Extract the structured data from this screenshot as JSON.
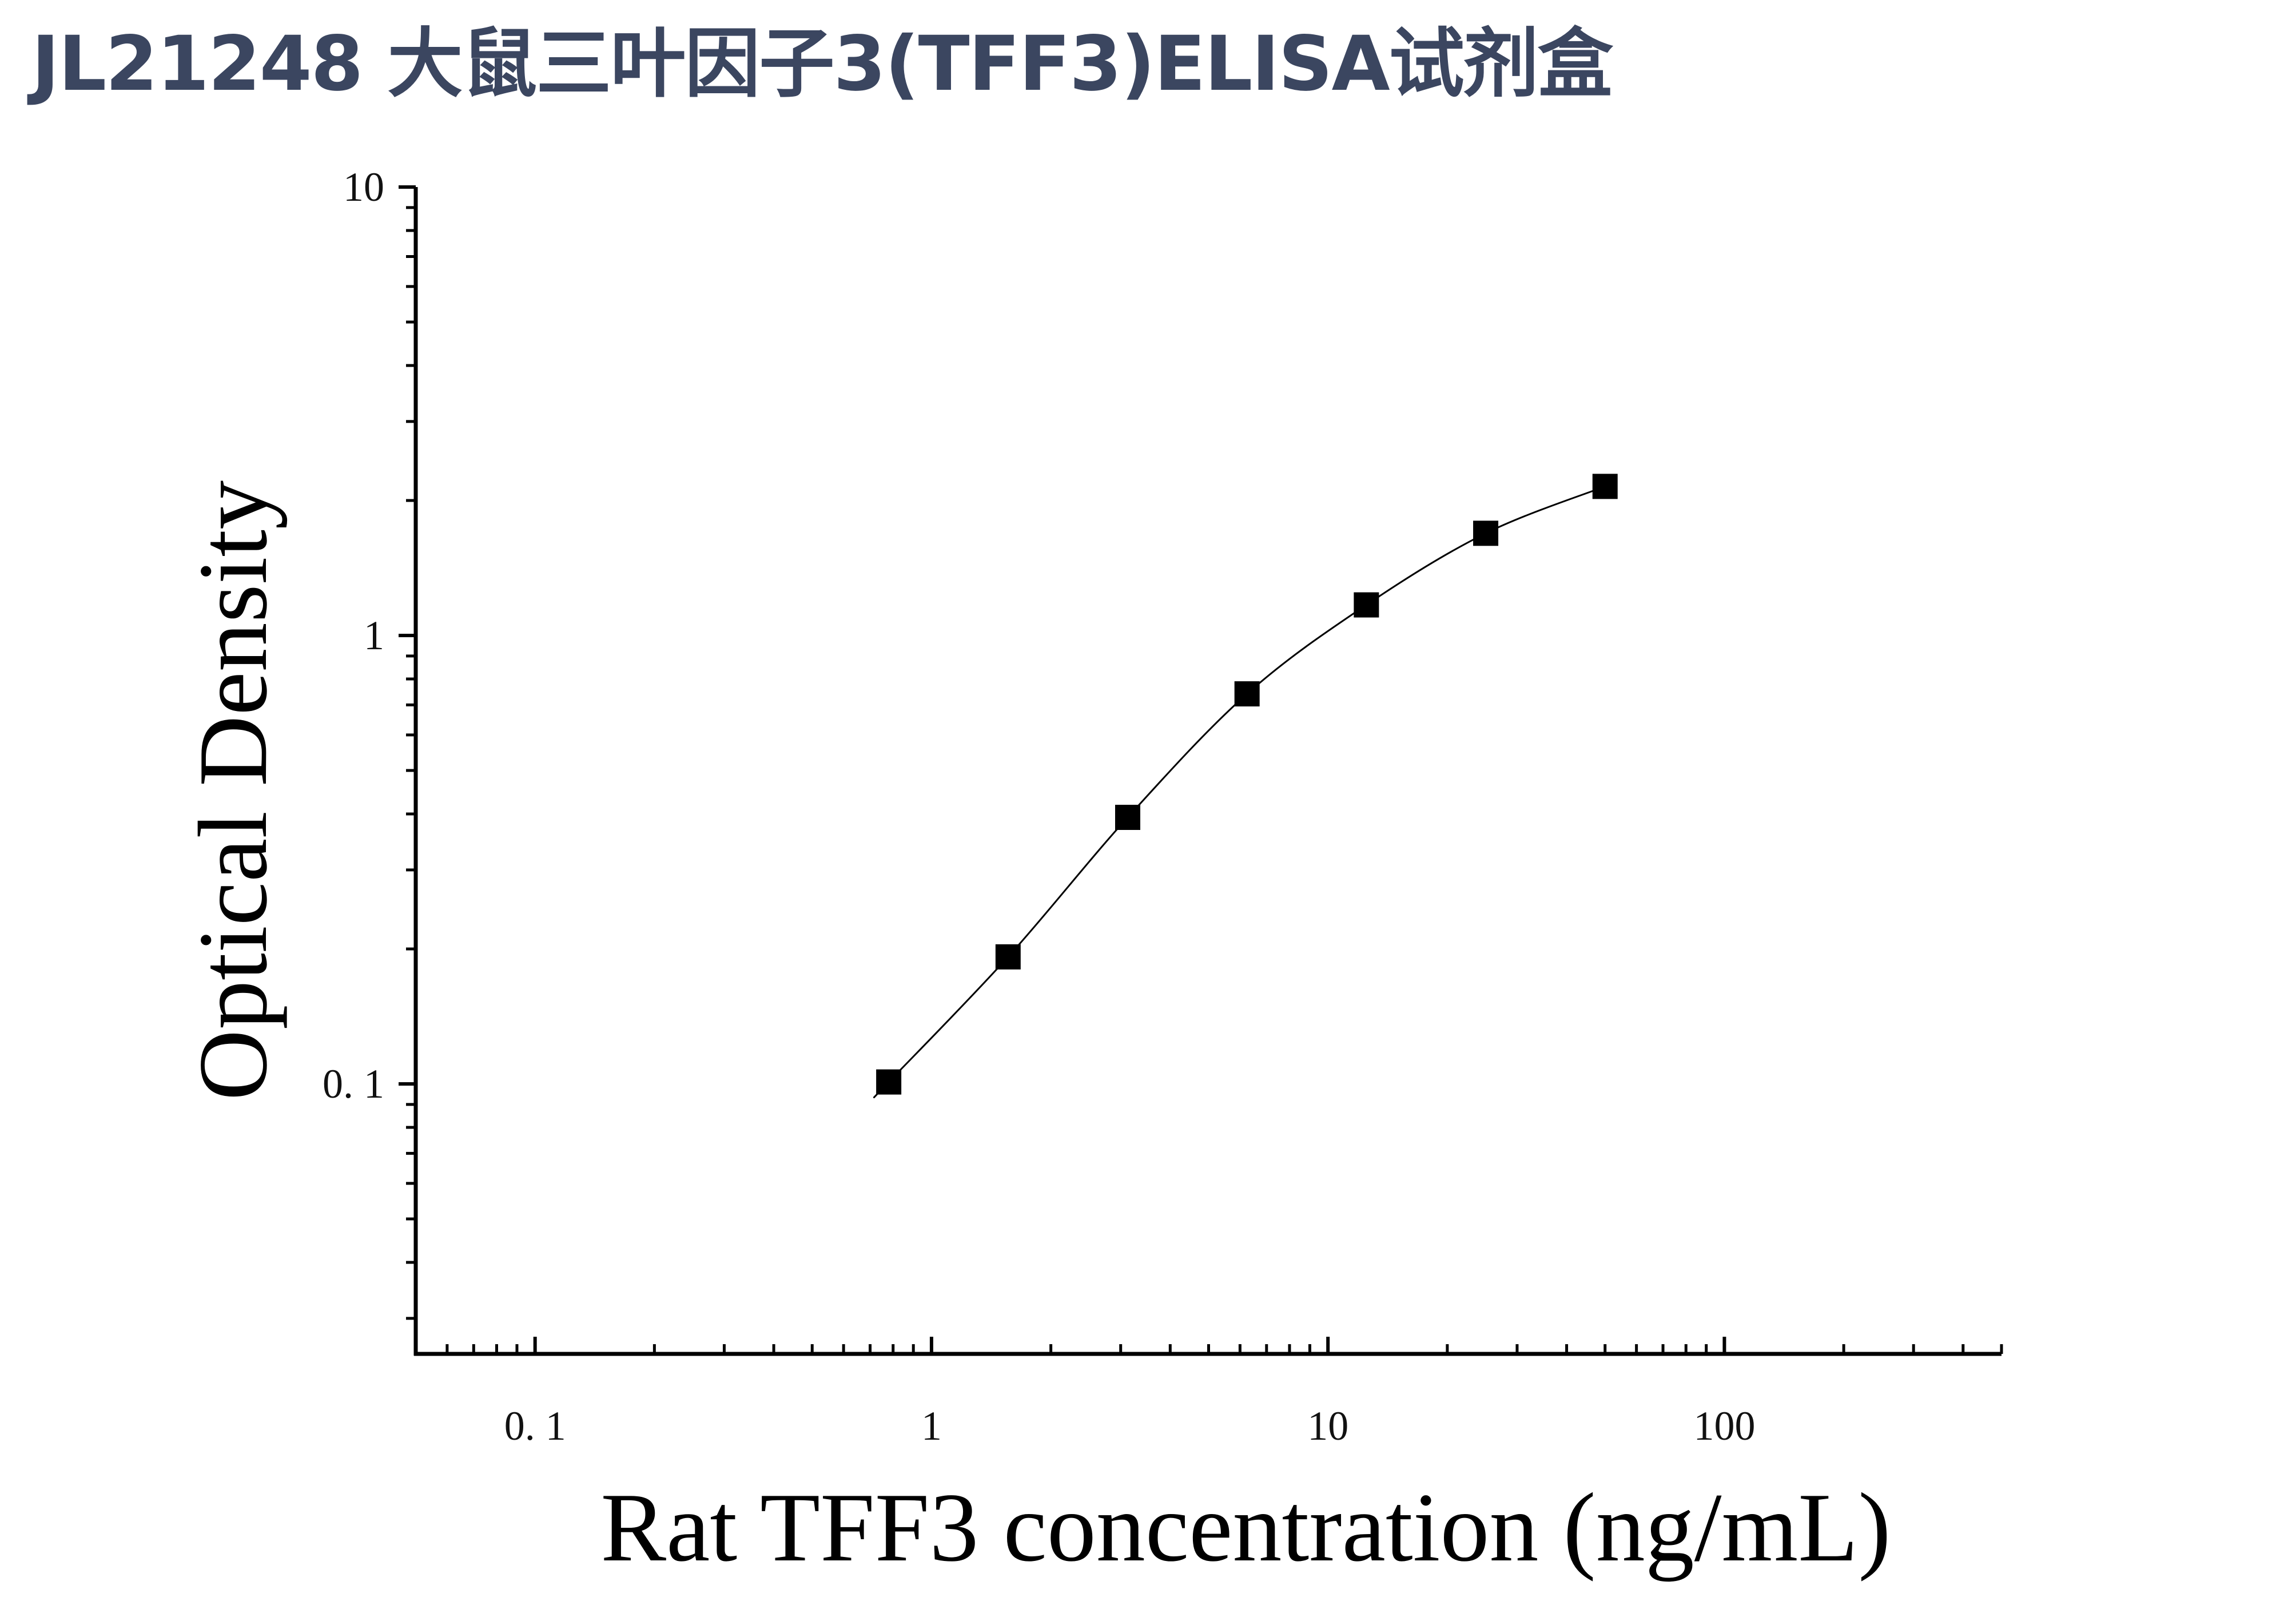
{
  "page": {
    "title": "JL21248 大鼠三叶因子3(TFF3)ELISA试剂盒"
  },
  "chart_data": {
    "type": "scatter",
    "title": "JL21248 大鼠三叶因子3(TFF3)ELISA试剂盒",
    "xlabel": "Rat TFF3 concentration (ng/mL)",
    "ylabel": "Optical Density",
    "x_scale": "log",
    "y_scale": "log",
    "xlim": [
      0.05,
      500
    ],
    "ylim": [
      0.025,
      10
    ],
    "x_ticks": [
      {
        "value": 0.1,
        "label": "0. 1"
      },
      {
        "value": 1,
        "label": "1"
      },
      {
        "value": 10,
        "label": "10"
      },
      {
        "value": 100,
        "label": "100"
      }
    ],
    "y_ticks": [
      {
        "value": 0.1,
        "label": "0. 1"
      },
      {
        "value": 1,
        "label": "1"
      },
      {
        "value": 10,
        "label": "10"
      }
    ],
    "grid": false,
    "legend": false,
    "series": [
      {
        "marker": "filled-square",
        "color": "#000000",
        "x": [
          0.78,
          1.56,
          3.125,
          6.25,
          12.5,
          25,
          50
        ],
        "y": [
          0.101,
          0.192,
          0.393,
          0.741,
          1.17,
          1.69,
          2.15
        ]
      }
    ],
    "fit_curve": {
      "style": "thin-solid",
      "color": "#000000"
    }
  }
}
